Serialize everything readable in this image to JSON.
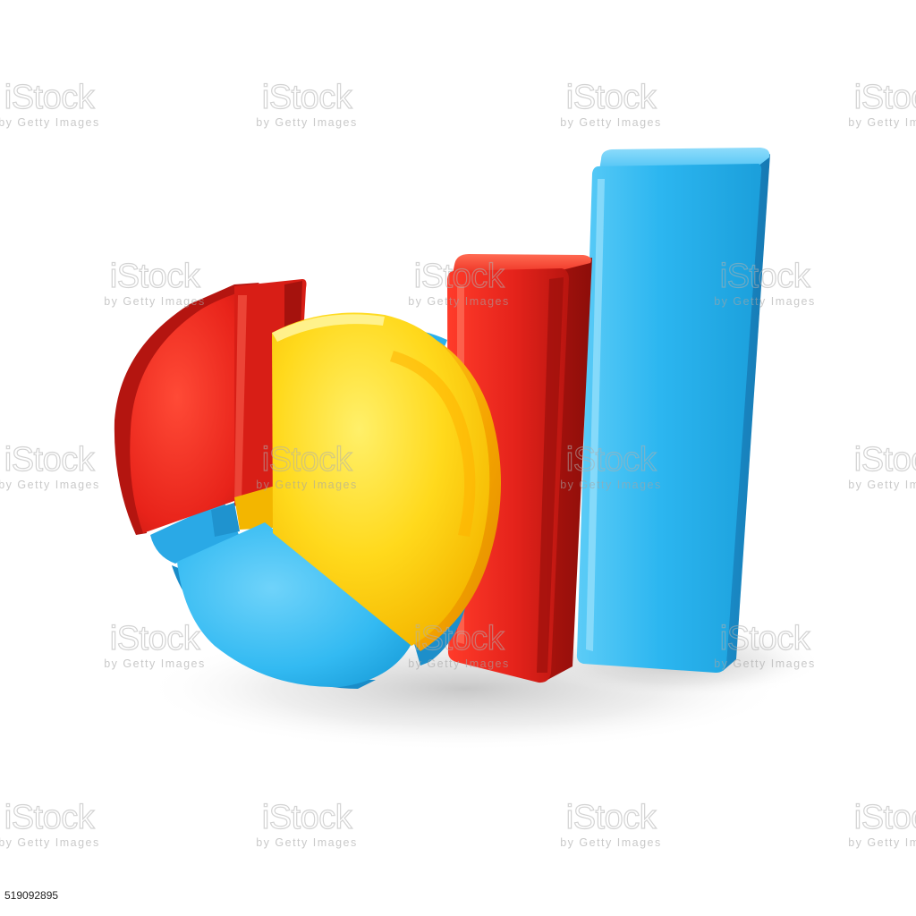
{
  "image": {
    "subject": "3D glossy pie chart and bar chart blocks",
    "background_color": "#ffffff",
    "colors": {
      "red": "#e8231a",
      "yellow": "#ffd21a",
      "blue": "#29b3ef"
    }
  },
  "watermark": {
    "main": "iStock",
    "sub": "by Getty Images",
    "tm": "™"
  },
  "stock_id": "519092895"
}
